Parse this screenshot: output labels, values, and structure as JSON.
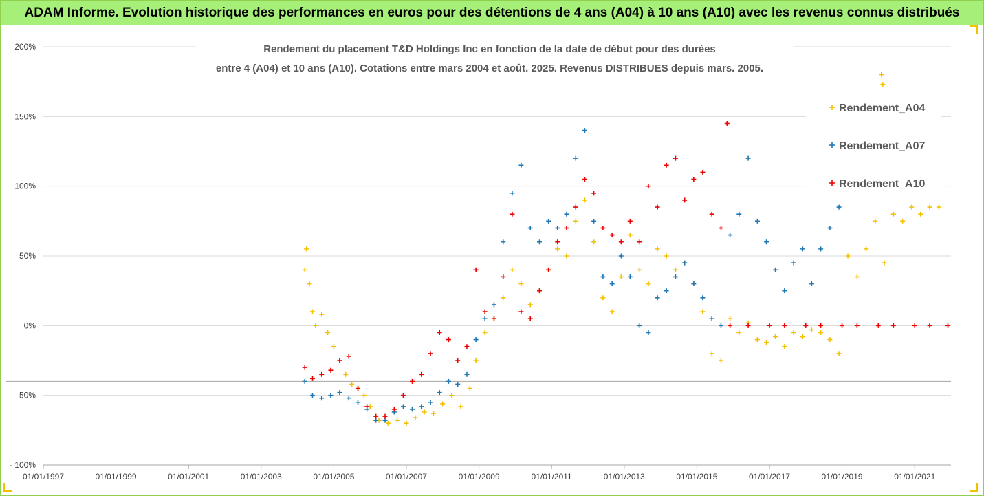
{
  "banner": {
    "title": "ADAM Informe. Evolution historique des performances en euros pour des détentions de 4 ans (A04) à 10 ans (A10) avec les revenus connus distribués"
  },
  "chart_data": {
    "type": "scatter",
    "title_lines": [
      "Rendement du placement T&D Holdings Inc en fonction de la date de début pour des durées",
      "entre 4 (A04) et 10 ans (A10). Cotations entre mars 2004 et août. 2025. Revenus DISTRIBUES depuis mars. 2005."
    ],
    "xlabel": "",
    "ylabel": "",
    "x_range": [
      "1997-01-01",
      "2022-01-01"
    ],
    "y_range": [
      -100,
      200
    ],
    "y_ticks": [
      200,
      150,
      100,
      50,
      0,
      -50,
      -100
    ],
    "y_tick_labels": [
      "200%",
      "150%",
      "100%",
      "50%",
      "0%",
      "- 50%",
      "- 100%"
    ],
    "x_ticks": [
      "1997-01-01",
      "1999-01-01",
      "2001-01-01",
      "2003-01-01",
      "2005-01-01",
      "2007-01-01",
      "2009-01-01",
      "2011-01-01",
      "2013-01-01",
      "2015-01-01",
      "2017-01-01",
      "2019-01-01",
      "2021-01-01"
    ],
    "x_tick_labels": [
      "01/01/1997",
      "01/01/1999",
      "01/01/2001",
      "01/01/2003",
      "01/01/2005",
      "01/01/2007",
      "01/01/2009",
      "01/01/2011",
      "01/01/2013",
      "01/01/2015",
      "01/01/2017",
      "01/01/2019",
      "01/01/2021"
    ],
    "grid": "horizontal",
    "reference_line_y": -40,
    "legend_position": "right",
    "marker": "+",
    "series": [
      {
        "name": "Rendement_A04",
        "color": "#f5c000",
        "points": [
          [
            "2004-03-15",
            40
          ],
          [
            "2004-04-01",
            55
          ],
          [
            "2004-05-01",
            30
          ],
          [
            "2004-06-01",
            10
          ],
          [
            "2004-07-01",
            0
          ],
          [
            "2004-09-01",
            8
          ],
          [
            "2004-11-01",
            -5
          ],
          [
            "2005-01-01",
            -15
          ],
          [
            "2005-03-01",
            -25
          ],
          [
            "2005-05-01",
            -35
          ],
          [
            "2005-07-01",
            -42
          ],
          [
            "2005-09-01",
            -45
          ],
          [
            "2005-11-01",
            -50
          ],
          [
            "2006-01-01",
            -58
          ],
          [
            "2006-04-01",
            -68
          ],
          [
            "2006-07-01",
            -70
          ],
          [
            "2006-10-01",
            -68
          ],
          [
            "2007-01-01",
            -70
          ],
          [
            "2007-04-01",
            -66
          ],
          [
            "2007-07-01",
            -62
          ],
          [
            "2007-10-01",
            -63
          ],
          [
            "2008-01-01",
            -56
          ],
          [
            "2008-04-01",
            -50
          ],
          [
            "2008-07-01",
            -58
          ],
          [
            "2008-10-01",
            -45
          ],
          [
            "2008-12-01",
            -25
          ],
          [
            "2009-03-01",
            -5
          ],
          [
            "2009-06-01",
            5
          ],
          [
            "2009-09-01",
            20
          ],
          [
            "2009-12-01",
            40
          ],
          [
            "2010-03-01",
            30
          ],
          [
            "2010-06-01",
            15
          ],
          [
            "2010-09-01",
            25
          ],
          [
            "2010-12-01",
            40
          ],
          [
            "2011-03-01",
            55
          ],
          [
            "2011-06-01",
            50
          ],
          [
            "2011-09-01",
            75
          ],
          [
            "2011-12-01",
            90
          ],
          [
            "2012-03-01",
            60
          ],
          [
            "2012-06-01",
            20
          ],
          [
            "2012-09-01",
            10
          ],
          [
            "2012-12-01",
            35
          ],
          [
            "2013-03-01",
            65
          ],
          [
            "2013-06-01",
            40
          ],
          [
            "2013-09-01",
            30
          ],
          [
            "2013-12-01",
            55
          ],
          [
            "2014-03-01",
            50
          ],
          [
            "2014-06-01",
            40
          ],
          [
            "2014-09-01",
            45
          ],
          [
            "2014-12-01",
            30
          ],
          [
            "2015-03-01",
            10
          ],
          [
            "2015-06-01",
            -20
          ],
          [
            "2015-09-01",
            -25
          ],
          [
            "2015-12-01",
            5
          ],
          [
            "2016-03-01",
            -5
          ],
          [
            "2016-06-01",
            2
          ],
          [
            "2016-09-01",
            -10
          ],
          [
            "2016-12-01",
            -12
          ],
          [
            "2017-03-01",
            -8
          ],
          [
            "2017-06-01",
            -15
          ],
          [
            "2017-09-01",
            -5
          ],
          [
            "2017-12-01",
            -8
          ],
          [
            "2018-03-01",
            -3
          ],
          [
            "2018-06-01",
            -5
          ],
          [
            "2018-09-01",
            -10
          ],
          [
            "2018-12-01",
            -20
          ],
          [
            "2019-03-01",
            50
          ],
          [
            "2019-06-01",
            35
          ],
          [
            "2019-09-01",
            55
          ],
          [
            "2019-12-01",
            75
          ],
          [
            "2020-03-01",
            45
          ],
          [
            "2020-06-01",
            80
          ],
          [
            "2020-09-01",
            75
          ],
          [
            "2020-12-01",
            85
          ],
          [
            "2021-03-01",
            80
          ],
          [
            "2021-06-01",
            85
          ],
          [
            "2021-09-01",
            85
          ],
          [
            "2020-02-01",
            180
          ],
          [
            "2020-02-15",
            173
          ]
        ]
      },
      {
        "name": "Rendement_A07",
        "color": "#1f77b4",
        "points": [
          [
            "2004-03-15",
            -40
          ],
          [
            "2004-06-01",
            -50
          ],
          [
            "2004-09-01",
            -52
          ],
          [
            "2004-12-01",
            -50
          ],
          [
            "2005-03-01",
            -48
          ],
          [
            "2005-06-01",
            -52
          ],
          [
            "2005-09-01",
            -55
          ],
          [
            "2005-12-01",
            -60
          ],
          [
            "2006-03-01",
            -68
          ],
          [
            "2006-06-01",
            -68
          ],
          [
            "2006-09-01",
            -62
          ],
          [
            "2006-12-01",
            -58
          ],
          [
            "2007-03-01",
            -60
          ],
          [
            "2007-06-01",
            -58
          ],
          [
            "2007-09-01",
            -55
          ],
          [
            "2007-12-01",
            -48
          ],
          [
            "2008-03-01",
            -40
          ],
          [
            "2008-06-01",
            -42
          ],
          [
            "2008-09-01",
            -35
          ],
          [
            "2008-12-01",
            -10
          ],
          [
            "2009-03-01",
            5
          ],
          [
            "2009-06-01",
            15
          ],
          [
            "2009-09-01",
            60
          ],
          [
            "2009-12-01",
            95
          ],
          [
            "2010-03-01",
            115
          ],
          [
            "2010-06-01",
            70
          ],
          [
            "2010-09-01",
            60
          ],
          [
            "2010-12-01",
            75
          ],
          [
            "2011-03-01",
            70
          ],
          [
            "2011-06-01",
            80
          ],
          [
            "2011-09-01",
            120
          ],
          [
            "2011-12-01",
            140
          ],
          [
            "2012-03-01",
            75
          ],
          [
            "2012-06-01",
            35
          ],
          [
            "2012-09-01",
            30
          ],
          [
            "2012-12-01",
            50
          ],
          [
            "2013-03-01",
            35
          ],
          [
            "2013-06-01",
            0
          ],
          [
            "2013-09-01",
            -5
          ],
          [
            "2013-12-01",
            20
          ],
          [
            "2014-03-01",
            25
          ],
          [
            "2014-06-01",
            35
          ],
          [
            "2014-09-01",
            45
          ],
          [
            "2014-12-01",
            30
          ],
          [
            "2015-03-01",
            20
          ],
          [
            "2015-06-01",
            5
          ],
          [
            "2015-09-01",
            0
          ],
          [
            "2015-12-01",
            65
          ],
          [
            "2016-03-01",
            80
          ],
          [
            "2016-06-01",
            120
          ],
          [
            "2016-09-01",
            75
          ],
          [
            "2016-12-01",
            60
          ],
          [
            "2017-03-01",
            40
          ],
          [
            "2017-06-01",
            25
          ],
          [
            "2017-09-01",
            45
          ],
          [
            "2017-12-01",
            55
          ],
          [
            "2018-03-01",
            30
          ],
          [
            "2018-06-01",
            55
          ],
          [
            "2018-09-01",
            70
          ],
          [
            "2018-12-01",
            85
          ]
        ]
      },
      {
        "name": "Rendement_A10",
        "color": "#ee0000",
        "points": [
          [
            "2004-03-15",
            -30
          ],
          [
            "2004-06-01",
            -38
          ],
          [
            "2004-09-01",
            -35
          ],
          [
            "2004-12-01",
            -32
          ],
          [
            "2005-03-01",
            -25
          ],
          [
            "2005-06-01",
            -22
          ],
          [
            "2005-09-01",
            -45
          ],
          [
            "2005-12-01",
            -58
          ],
          [
            "2006-03-01",
            -65
          ],
          [
            "2006-06-01",
            -65
          ],
          [
            "2006-09-01",
            -60
          ],
          [
            "2006-12-01",
            -50
          ],
          [
            "2007-03-01",
            -40
          ],
          [
            "2007-06-01",
            -35
          ],
          [
            "2007-09-01",
            -20
          ],
          [
            "2007-12-01",
            -5
          ],
          [
            "2008-03-01",
            -10
          ],
          [
            "2008-06-01",
            -25
          ],
          [
            "2008-09-01",
            -15
          ],
          [
            "2008-12-01",
            40
          ],
          [
            "2009-03-01",
            10
          ],
          [
            "2009-06-01",
            5
          ],
          [
            "2009-09-01",
            35
          ],
          [
            "2009-12-01",
            80
          ],
          [
            "2010-03-01",
            10
          ],
          [
            "2010-06-01",
            5
          ],
          [
            "2010-09-01",
            25
          ],
          [
            "2010-12-01",
            40
          ],
          [
            "2011-03-01",
            60
          ],
          [
            "2011-06-01",
            70
          ],
          [
            "2011-09-01",
            85
          ],
          [
            "2011-12-01",
            105
          ],
          [
            "2012-03-01",
            95
          ],
          [
            "2012-06-01",
            70
          ],
          [
            "2012-09-01",
            65
          ],
          [
            "2012-12-01",
            60
          ],
          [
            "2013-03-01",
            75
          ],
          [
            "2013-06-01",
            60
          ],
          [
            "2013-09-01",
            100
          ],
          [
            "2013-12-01",
            85
          ],
          [
            "2014-03-01",
            115
          ],
          [
            "2014-06-01",
            120
          ],
          [
            "2014-09-01",
            90
          ],
          [
            "2014-12-01",
            105
          ],
          [
            "2015-03-01",
            110
          ],
          [
            "2015-06-01",
            80
          ],
          [
            "2015-09-01",
            70
          ],
          [
            "2015-11-01",
            145
          ],
          [
            "2015-12-01",
            0
          ],
          [
            "2016-06-01",
            0
          ],
          [
            "2017-01-01",
            0
          ],
          [
            "2017-06-01",
            0
          ],
          [
            "2018-01-01",
            0
          ],
          [
            "2018-06-01",
            0
          ],
          [
            "2019-01-01",
            0
          ],
          [
            "2019-06-01",
            0
          ],
          [
            "2020-01-01",
            0
          ],
          [
            "2020-06-01",
            0
          ],
          [
            "2021-01-01",
            0
          ],
          [
            "2021-06-01",
            0
          ],
          [
            "2021-12-01",
            0
          ]
        ]
      }
    ]
  }
}
